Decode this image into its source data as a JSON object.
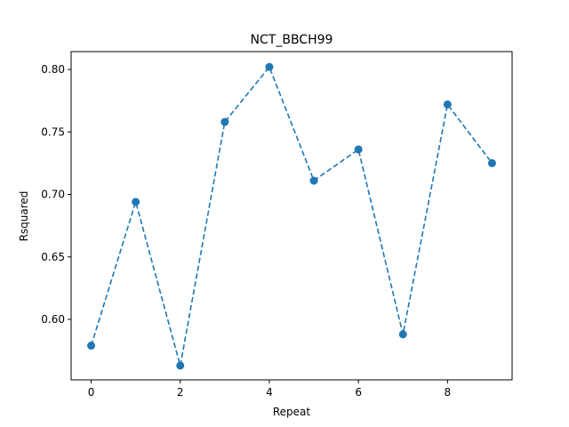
{
  "chart_data": {
    "type": "line",
    "title": "NCT_BBCH99",
    "xlabel": "Repeat",
    "ylabel": "Rsquared",
    "xlim": [
      -0.45,
      9.45
    ],
    "ylim": [
      0.5516,
      0.8143
    ],
    "x_ticks": [
      0,
      2,
      4,
      6,
      8
    ],
    "x_tick_labels": [
      "0",
      "2",
      "4",
      "6",
      "8"
    ],
    "y_ticks": [
      0.6,
      0.65,
      0.7,
      0.75,
      0.8
    ],
    "y_tick_labels": [
      "0.60",
      "0.65",
      "0.70",
      "0.75",
      "0.80"
    ],
    "grid": false,
    "line_style": "dashed",
    "marker": "circle",
    "color": "#1f77b4",
    "series": [
      {
        "x": [
          0,
          1,
          2,
          3,
          4,
          5,
          6,
          7,
          8,
          9
        ],
        "values": [
          0.579,
          0.694,
          0.563,
          0.758,
          0.802,
          0.711,
          0.736,
          0.588,
          0.772,
          0.725
        ]
      }
    ]
  }
}
